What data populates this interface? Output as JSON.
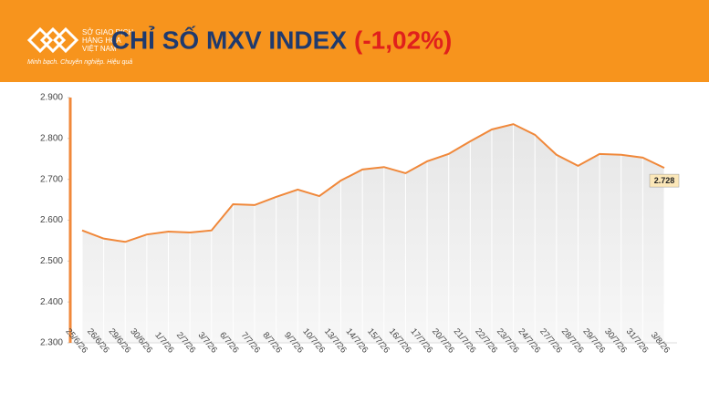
{
  "header": {
    "logo_lines": [
      "SỞ GIAO DỊCH",
      "HÀNG HÓA",
      "VIỆT NAM"
    ],
    "tagline": "Minh bạch. Chuyên nghiệp. Hiệu quả"
  },
  "chart_data": {
    "type": "line",
    "title": "CHỈ SỐ MXV INDEX",
    "subtitle": "(-1,02%)",
    "categories": [
      "25/6/26",
      "26/6/26",
      "29/6/26",
      "30/6/26",
      "1/7/26",
      "2/7/26",
      "3/7/26",
      "6/7/26",
      "7/7/26",
      "8/7/26",
      "9/7/26",
      "10/7/26",
      "13/7/26",
      "14/7/26",
      "15/7/26",
      "16/7/26",
      "17/7/26",
      "20/7/26",
      "21/7/26",
      "22/7/26",
      "23/7/26",
      "24/7/26",
      "27/7/26",
      "28/7/26",
      "29/7/26",
      "30/7/26",
      "31/7/26",
      "3/8/26"
    ],
    "values": [
      2575,
      2555,
      2547,
      2565,
      2572,
      2570,
      2575,
      2639,
      2637,
      2657,
      2675,
      2659,
      2697,
      2724,
      2730,
      2715,
      2744,
      2762,
      2793,
      2822,
      2835,
      2809,
      2760,
      2733,
      2762,
      2760,
      2753,
      2728
    ],
    "value_labels": [
      null,
      null,
      null,
      null,
      null,
      null,
      null,
      null,
      null,
      null,
      null,
      null,
      null,
      null,
      null,
      null,
      null,
      null,
      null,
      null,
      null,
      null,
      null,
      null,
      null,
      null,
      null,
      "2.728"
    ],
    "color": "#f0883a",
    "ylim": [
      2300,
      2900
    ],
    "yticks": [
      {
        "value": 2300,
        "label": "2.300"
      },
      {
        "value": 2400,
        "label": "2.400"
      },
      {
        "value": 2500,
        "label": "2.500"
      },
      {
        "value": 2600,
        "label": "2.600"
      },
      {
        "value": 2700,
        "label": "2.700"
      },
      {
        "value": 2800,
        "label": "2.800"
      },
      {
        "value": 2900,
        "label": "2.900"
      }
    ],
    "grid": false
  }
}
